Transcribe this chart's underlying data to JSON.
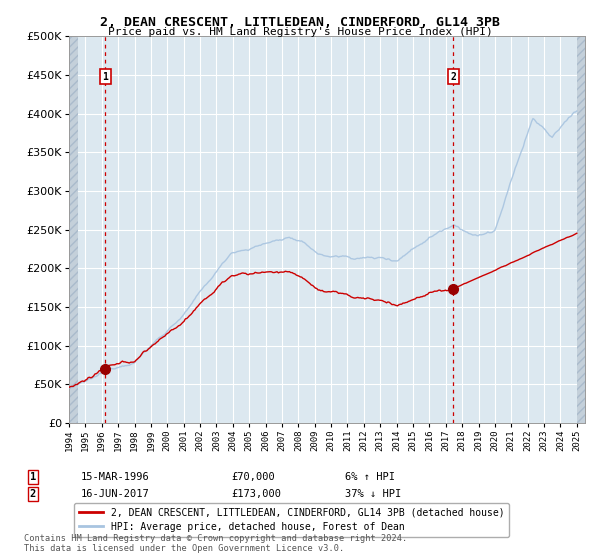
{
  "title": "2, DEAN CRESCENT, LITTLEDEAN, CINDERFORD, GL14 3PB",
  "subtitle": "Price paid vs. HM Land Registry's House Price Index (HPI)",
  "legend_line1": "2, DEAN CRESCENT, LITTLEDEAN, CINDERFORD, GL14 3PB (detached house)",
  "legend_line2": "HPI: Average price, detached house, Forest of Dean",
  "transaction1_date": "15-MAR-1996",
  "transaction1_price": 70000,
  "transaction1_label": "6% ↑ HPI",
  "transaction1_year": 1996.21,
  "transaction2_date": "16-JUN-2017",
  "transaction2_price": 173000,
  "transaction2_label": "37% ↓ HPI",
  "transaction2_year": 2017.46,
  "hpi_color": "#a8c4e0",
  "price_color": "#cc0000",
  "point_color": "#990000",
  "vline_color": "#cc0000",
  "plot_bg_color": "#dce8f0",
  "grid_color": "#ffffff",
  "ylim": [
    0,
    500000
  ],
  "xlim_start": 1994.0,
  "xlim_end": 2025.5,
  "footer": "Contains HM Land Registry data © Crown copyright and database right 2024.\nThis data is licensed under the Open Government Licence v3.0."
}
